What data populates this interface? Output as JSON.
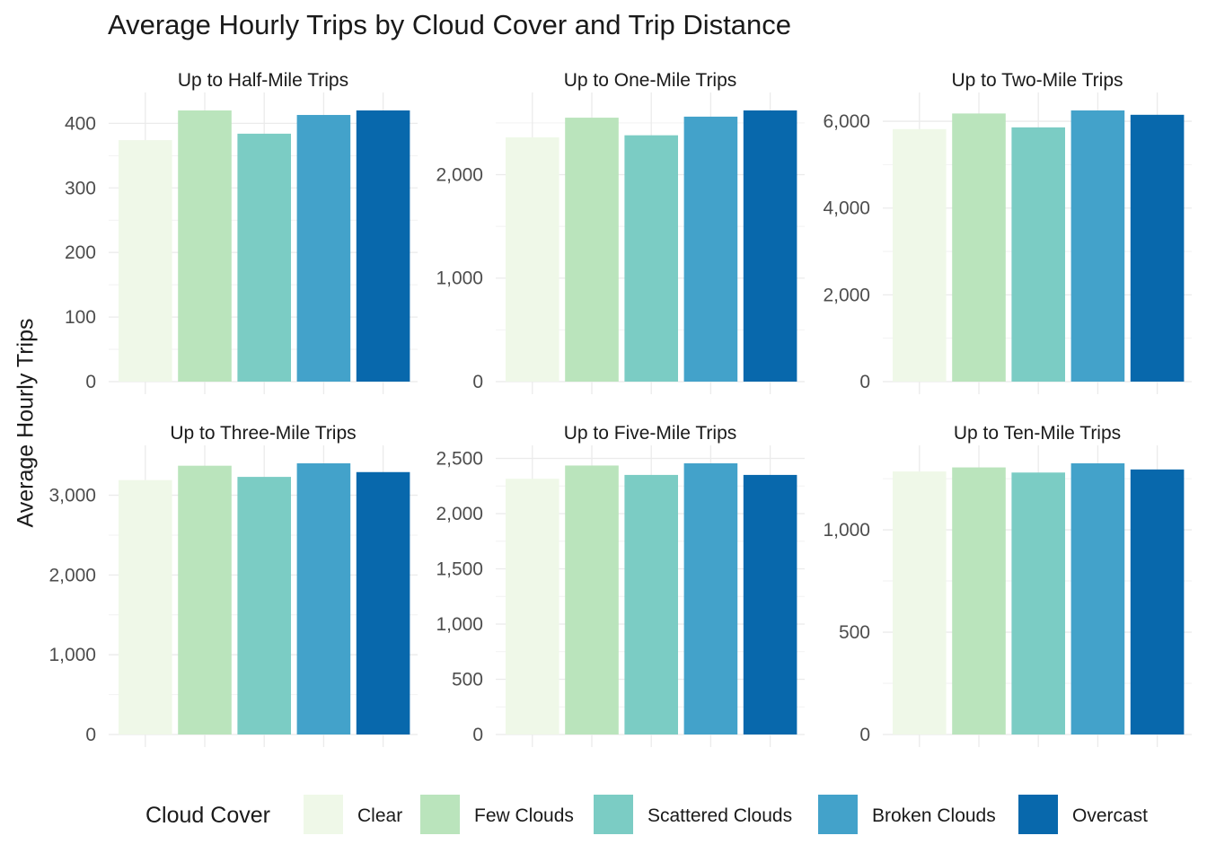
{
  "title": "Average Hourly Trips by Cloud Cover and Trip Distance",
  "y_axis_title": "Average Hourly Trips",
  "legend": {
    "title": "Cloud Cover",
    "items": [
      {
        "label": "Clear",
        "color": "#EFF8E8"
      },
      {
        "label": "Few Clouds",
        "color": "#BAE4BC"
      },
      {
        "label": "Scattered Clouds",
        "color": "#7BCCC4"
      },
      {
        "label": "Broken Clouds",
        "color": "#43A2CA"
      },
      {
        "label": "Overcast",
        "color": "#0868AC"
      }
    ]
  },
  "chart_data": {
    "type": "bar",
    "faceted": true,
    "facet_rows": 2,
    "facet_cols": 3,
    "y_scales": "free",
    "categories": [
      "Clear",
      "Few Clouds",
      "Scattered Clouds",
      "Broken Clouds",
      "Overcast"
    ],
    "x_tick_labels_shown": false,
    "grid": true,
    "legend_position": "bottom",
    "panels": [
      {
        "title": "Up to Half-Mile Trips",
        "values": [
          374,
          420,
          384,
          413,
          420
        ],
        "ylim": [
          0,
          420
        ],
        "yticks": [
          0,
          100,
          200,
          300,
          400
        ],
        "ytick_labels": [
          "0",
          "100",
          "200",
          "300",
          "400"
        ]
      },
      {
        "title": "Up to One-Mile Trips",
        "values": [
          2360,
          2550,
          2380,
          2560,
          2620
        ],
        "ylim": [
          0,
          2620
        ],
        "yticks": [
          0,
          1000,
          2000
        ],
        "ytick_labels": [
          "0",
          "1,000",
          "2,000"
        ]
      },
      {
        "title": "Up to Two-Mile Trips",
        "values": [
          5820,
          6180,
          5860,
          6250,
          6150
        ],
        "ylim": [
          0,
          6250
        ],
        "yticks": [
          0,
          2000,
          4000,
          6000
        ],
        "ytick_labels": [
          "0",
          "2,000",
          "4,000",
          "6,000"
        ]
      },
      {
        "title": "Up to Three-Mile Trips",
        "values": [
          3190,
          3370,
          3230,
          3400,
          3290
        ],
        "ylim": [
          0,
          3400
        ],
        "yticks": [
          0,
          1000,
          2000,
          3000
        ],
        "ytick_labels": [
          "0",
          "1,000",
          "2,000",
          "3,000"
        ]
      },
      {
        "title": "Up to Five-Mile Trips",
        "values": [
          2315,
          2435,
          2350,
          2455,
          2350
        ],
        "ylim": [
          0,
          2455
        ],
        "yticks": [
          0,
          500,
          1000,
          1500,
          2000,
          2500
        ],
        "ytick_labels": [
          "0",
          "500",
          "1,000",
          "1,500",
          "2,000",
          "2,500"
        ]
      },
      {
        "title": "Up to Ten-Mile Trips",
        "values": [
          1285,
          1305,
          1280,
          1325,
          1295
        ],
        "ylim": [
          0,
          1325
        ],
        "yticks": [
          0,
          500,
          1000
        ],
        "ytick_labels": [
          "0",
          "500",
          "1,000"
        ]
      }
    ]
  }
}
